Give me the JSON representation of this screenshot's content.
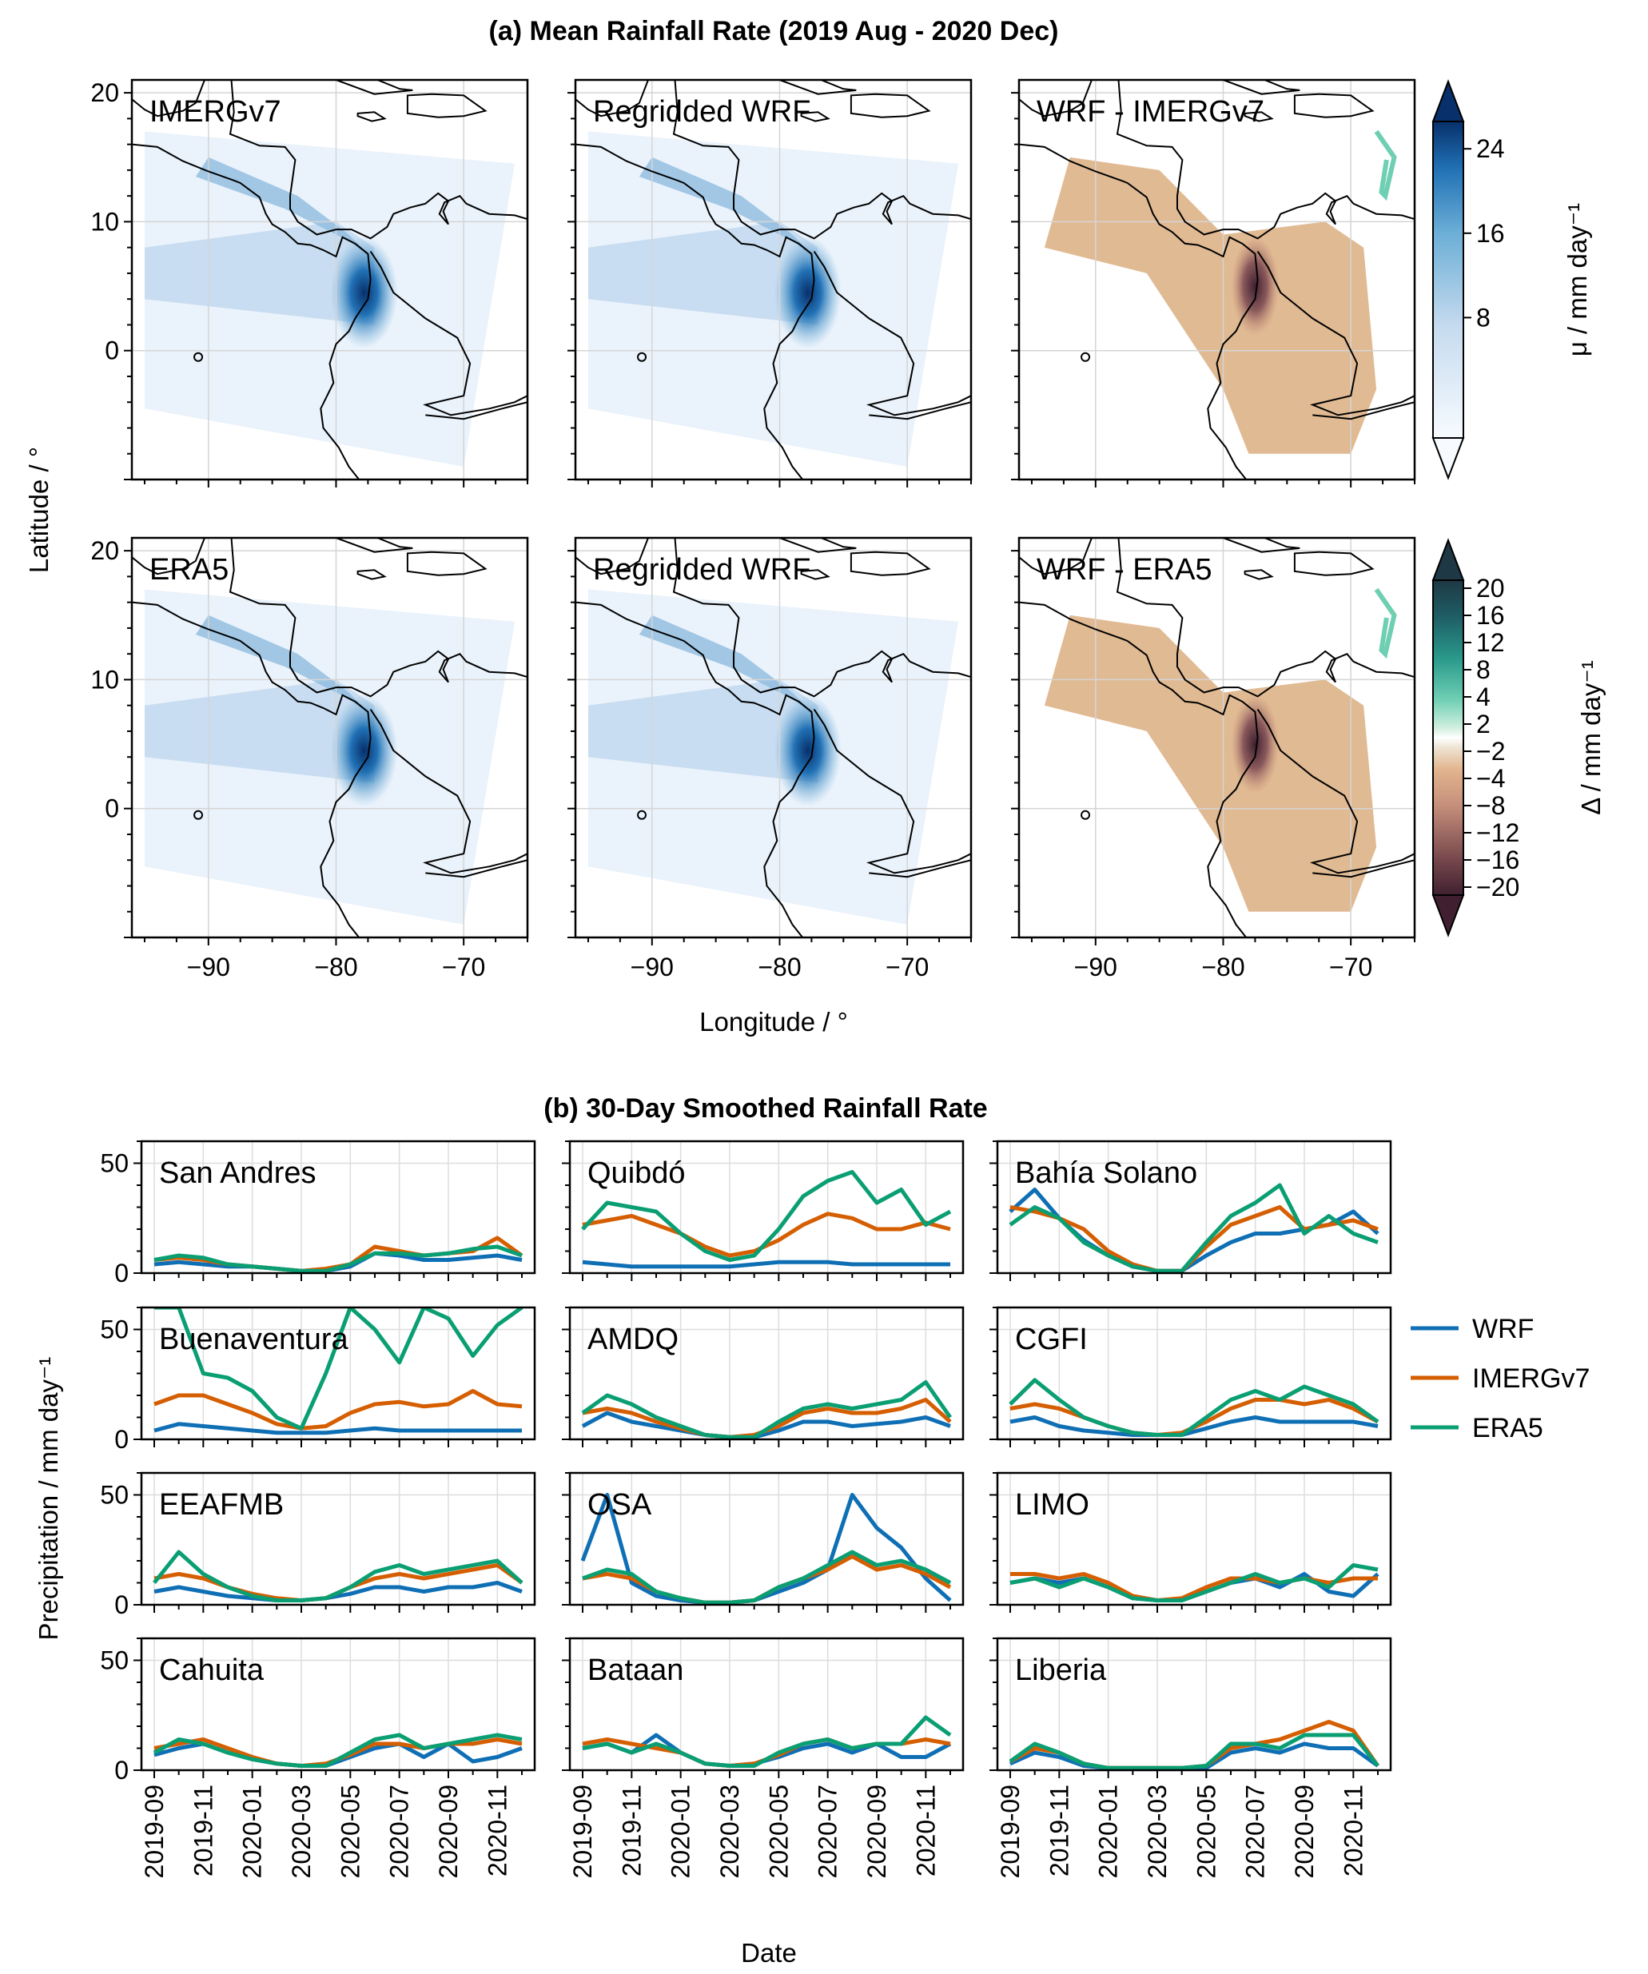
{
  "chart_data": [
    {
      "type": "heatmap",
      "title": "(a) Mean Rainfall Rate (2019 Aug - 2020 Dec)",
      "xlabel": "Longitude / °",
      "ylabel": "Latitude / °",
      "xlim": [
        -96,
        -65
      ],
      "ylim": [
        -10,
        21
      ],
      "xticks": [
        "−90",
        "−80",
        "−70"
      ],
      "yticks": [
        "20",
        "10",
        "0"
      ],
      "grid": true,
      "panels": [
        {
          "label": "IMERGv7",
          "row": 0,
          "col": 0,
          "kind": "mean"
        },
        {
          "label": "Regridded WRF",
          "row": 0,
          "col": 1,
          "kind": "mean"
        },
        {
          "label": "WRF - IMERGv7",
          "row": 0,
          "col": 2,
          "kind": "diff"
        },
        {
          "label": "ERA5",
          "row": 1,
          "col": 0,
          "kind": "mean"
        },
        {
          "label": "Regridded WRF",
          "row": 1,
          "col": 1,
          "kind": "mean"
        },
        {
          "label": "WRF - ERA5",
          "row": 1,
          "col": 2,
          "kind": "diff"
        }
      ],
      "colorbars": [
        {
          "label": "μ / mm day⁻¹",
          "ticks": [
            "24",
            "16",
            "8"
          ],
          "range": [
            0,
            30
          ],
          "colormap": "Blues"
        },
        {
          "label": "Δ / mm day⁻¹",
          "ticks": [
            "20",
            "16",
            "12",
            "8",
            "4",
            "2",
            "−2",
            "−4",
            "−8",
            "−12",
            "−16",
            "−20"
          ],
          "colormap": "BrBG-like"
        }
      ]
    },
    {
      "type": "line",
      "title": "(b) 30-Day Smoothed Rainfall Rate",
      "xlabel": "Date",
      "ylabel": "Precipitation / mm day⁻¹",
      "ylim": [
        0,
        60
      ],
      "yticks": [
        "50",
        "0"
      ],
      "grid": true,
      "legend_position": "right",
      "x": [
        "2019-09",
        "2019-10",
        "2019-11",
        "2019-12",
        "2020-01",
        "2020-02",
        "2020-03",
        "2020-04",
        "2020-05",
        "2020-06",
        "2020-07",
        "2020-08",
        "2020-09",
        "2020-10",
        "2020-11",
        "2020-12"
      ],
      "xticklabels": [
        "2019-09",
        "2019-11",
        "2020-01",
        "2020-03",
        "2020-05",
        "2020-07",
        "2020-09",
        "2020-11"
      ],
      "legend": [
        {
          "name": "WRF",
          "color": "#0f6fb5"
        },
        {
          "name": "IMERGv7",
          "color": "#d55e00"
        },
        {
          "name": "ERA5",
          "color": "#0a9e73"
        }
      ],
      "stations": [
        {
          "name": "San Andres",
          "WRF": [
            4,
            5,
            4,
            3,
            3,
            2,
            1,
            1,
            3,
            9,
            8,
            6,
            6,
            7,
            8,
            6
          ],
          "IMERGv7": [
            6,
            7,
            6,
            4,
            3,
            2,
            1,
            2,
            4,
            12,
            10,
            8,
            9,
            10,
            16,
            8
          ],
          "ERA5": [
            6,
            8,
            7,
            4,
            3,
            2,
            1,
            1,
            4,
            9,
            9,
            8,
            9,
            11,
            12,
            8
          ]
        },
        {
          "name": "Quibdó",
          "WRF": [
            5,
            4,
            3,
            3,
            3,
            3,
            3,
            4,
            5,
            5,
            5,
            4,
            4,
            4,
            4,
            4
          ],
          "IMERGv7": [
            22,
            24,
            26,
            22,
            18,
            12,
            8,
            10,
            15,
            22,
            27,
            25,
            20,
            20,
            23,
            20
          ],
          "ERA5": [
            20,
            32,
            30,
            28,
            18,
            10,
            6,
            8,
            20,
            35,
            42,
            46,
            32,
            38,
            22,
            28
          ]
        },
        {
          "name": "Bahía Solano",
          "WRF": [
            28,
            38,
            25,
            15,
            8,
            3,
            1,
            1,
            8,
            14,
            18,
            18,
            20,
            22,
            28,
            18
          ],
          "IMERGv7": [
            30,
            28,
            25,
            20,
            10,
            4,
            1,
            1,
            12,
            22,
            26,
            30,
            20,
            22,
            24,
            20
          ],
          "ERA5": [
            22,
            30,
            25,
            14,
            8,
            3,
            1,
            1,
            14,
            26,
            32,
            40,
            18,
            26,
            18,
            14
          ]
        },
        {
          "name": "Buenaventura",
          "WRF": [
            4,
            7,
            6,
            5,
            4,
            3,
            3,
            3,
            4,
            5,
            4,
            4,
            4,
            4,
            4,
            4
          ],
          "IMERGv7": [
            16,
            20,
            20,
            16,
            12,
            7,
            5,
            6,
            12,
            16,
            17,
            15,
            16,
            22,
            16,
            15
          ],
          "ERA5": [
            60,
            60,
            30,
            28,
            22,
            10,
            5,
            30,
            60,
            50,
            35,
            60,
            55,
            38,
            52,
            60
          ]
        },
        {
          "name": "AMDQ",
          "WRF": [
            6,
            12,
            8,
            6,
            4,
            2,
            1,
            1,
            4,
            8,
            8,
            6,
            7,
            8,
            10,
            6
          ],
          "IMERGv7": [
            12,
            14,
            12,
            8,
            5,
            2,
            1,
            2,
            6,
            12,
            14,
            12,
            12,
            14,
            18,
            8
          ],
          "ERA5": [
            12,
            20,
            16,
            10,
            6,
            2,
            1,
            1,
            8,
            14,
            16,
            14,
            16,
            18,
            26,
            10
          ]
        },
        {
          "name": "CGFI",
          "WRF": [
            8,
            10,
            6,
            4,
            3,
            2,
            2,
            2,
            5,
            8,
            10,
            8,
            8,
            8,
            8,
            6
          ],
          "IMERGv7": [
            14,
            16,
            14,
            10,
            6,
            3,
            2,
            3,
            8,
            14,
            18,
            18,
            16,
            18,
            14,
            8
          ],
          "ERA5": [
            16,
            27,
            18,
            10,
            6,
            3,
            2,
            2,
            10,
            18,
            22,
            18,
            24,
            20,
            16,
            8
          ]
        },
        {
          "name": "EEAFMB",
          "WRF": [
            6,
            8,
            6,
            4,
            3,
            2,
            2,
            3,
            5,
            8,
            8,
            6,
            8,
            8,
            10,
            6
          ],
          "IMERGv7": [
            12,
            14,
            12,
            8,
            5,
            3,
            2,
            3,
            8,
            12,
            14,
            12,
            14,
            16,
            18,
            10
          ],
          "ERA5": [
            10,
            24,
            14,
            8,
            4,
            2,
            2,
            3,
            8,
            15,
            18,
            14,
            16,
            18,
            20,
            10
          ]
        },
        {
          "name": "OSA",
          "WRF": [
            20,
            50,
            10,
            4,
            2,
            1,
            1,
            2,
            6,
            10,
            16,
            50,
            35,
            26,
            12,
            2
          ],
          "IMERGv7": [
            12,
            14,
            12,
            6,
            3,
            1,
            1,
            2,
            8,
            12,
            16,
            22,
            16,
            18,
            14,
            8
          ],
          "ERA5": [
            12,
            16,
            14,
            6,
            3,
            1,
            1,
            2,
            8,
            12,
            18,
            24,
            18,
            20,
            16,
            10
          ]
        },
        {
          "name": "LIMO",
          "WRF": [
            10,
            12,
            10,
            12,
            8,
            3,
            2,
            2,
            6,
            10,
            12,
            8,
            14,
            6,
            4,
            14
          ],
          "IMERGv7": [
            14,
            14,
            12,
            14,
            10,
            4,
            2,
            3,
            8,
            12,
            12,
            10,
            12,
            10,
            12,
            12
          ],
          "ERA5": [
            10,
            12,
            8,
            12,
            8,
            3,
            2,
            2,
            6,
            10,
            14,
            10,
            12,
            8,
            18,
            16
          ]
        },
        {
          "name": "Cahuita",
          "WRF": [
            7,
            10,
            12,
            8,
            5,
            3,
            2,
            2,
            6,
            10,
            12,
            6,
            12,
            4,
            6,
            10
          ],
          "IMERGv7": [
            10,
            12,
            14,
            10,
            6,
            3,
            2,
            3,
            7,
            12,
            12,
            10,
            12,
            12,
            14,
            12
          ],
          "ERA5": [
            8,
            14,
            12,
            8,
            5,
            3,
            2,
            2,
            8,
            14,
            16,
            10,
            12,
            14,
            16,
            14
          ]
        },
        {
          "name": "Bataan",
          "WRF": [
            10,
            12,
            8,
            16,
            8,
            3,
            2,
            3,
            6,
            10,
            12,
            8,
            12,
            6,
            6,
            12
          ],
          "IMERGv7": [
            12,
            14,
            12,
            10,
            8,
            3,
            2,
            3,
            7,
            12,
            14,
            10,
            12,
            12,
            14,
            12
          ],
          "ERA5": [
            10,
            12,
            8,
            12,
            8,
            3,
            2,
            2,
            8,
            12,
            14,
            10,
            12,
            12,
            24,
            16
          ]
        },
        {
          "name": "Liberia",
          "WRF": [
            3,
            8,
            6,
            2,
            1,
            1,
            1,
            1,
            1,
            8,
            10,
            8,
            12,
            10,
            10,
            2
          ],
          "IMERGv7": [
            4,
            10,
            8,
            3,
            1,
            1,
            1,
            1,
            2,
            10,
            12,
            14,
            18,
            22,
            18,
            2
          ],
          "ERA5": [
            4,
            12,
            8,
            3,
            1,
            1,
            1,
            1,
            2,
            12,
            12,
            10,
            16,
            16,
            16,
            2
          ]
        }
      ]
    }
  ]
}
